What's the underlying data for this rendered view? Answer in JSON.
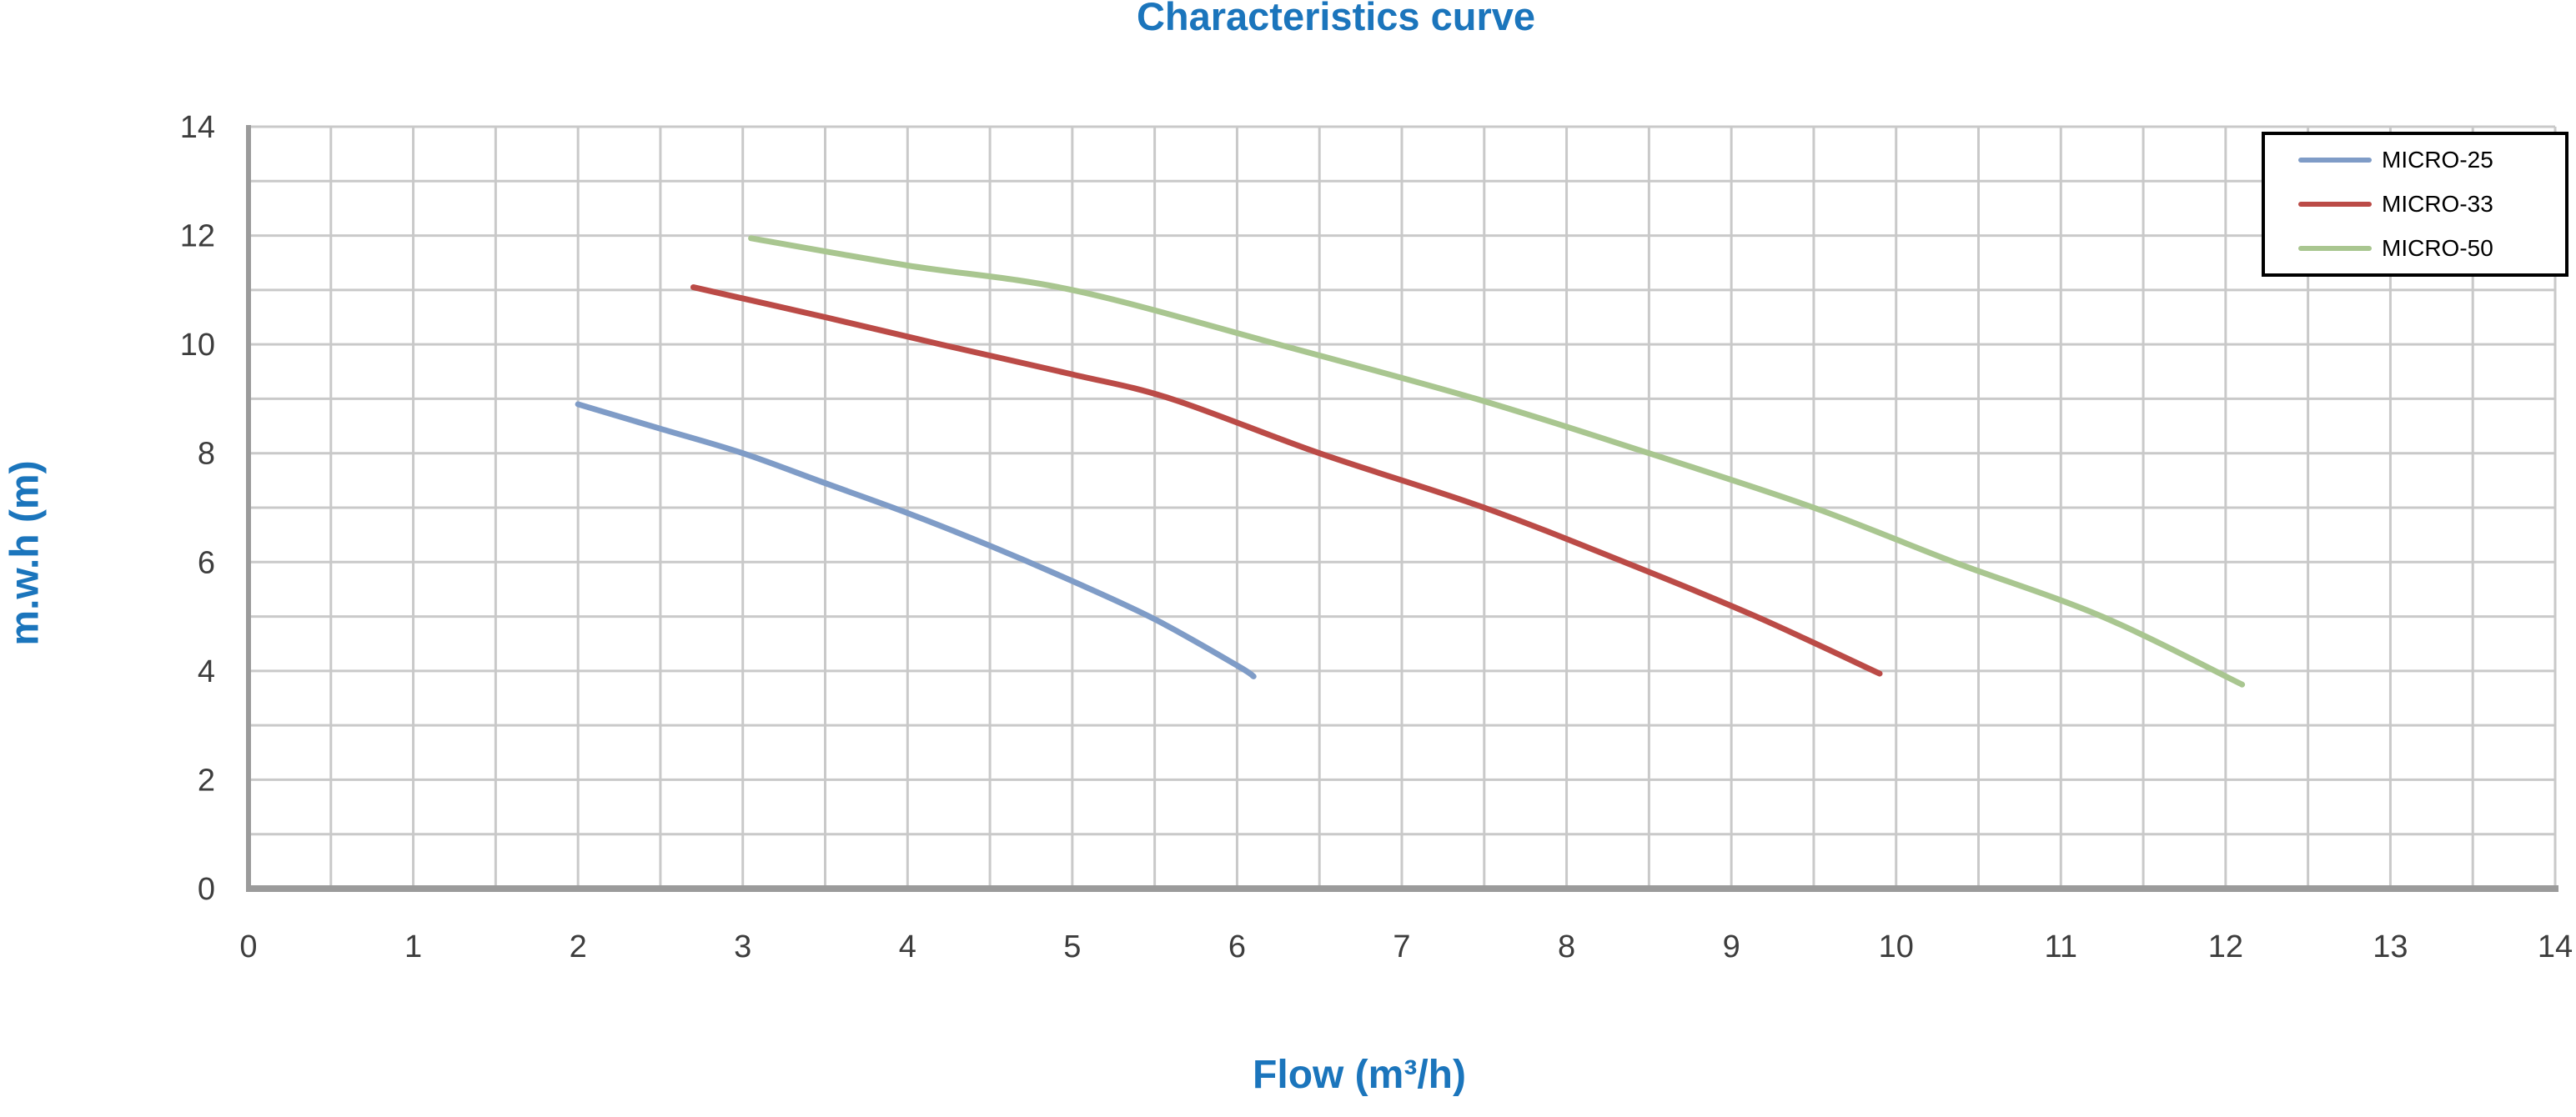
{
  "title": "Characteristics curve",
  "chart_data": {
    "type": "line",
    "title": "Characteristics curve",
    "xlabel": "Flow (m³/h)",
    "ylabel": "m.w.h (m)",
    "xlim": [
      0,
      14
    ],
    "ylim": [
      0,
      14
    ],
    "x_tick_step": 1,
    "y_tick_step": 2,
    "x_grid_step": 0.5,
    "y_grid_step": 1,
    "grid": true,
    "legend_position": "top-right",
    "series": [
      {
        "name": "MICRO-25",
        "color": "#7F9CC7",
        "points": [
          [
            2.0,
            8.9
          ],
          [
            2.5,
            8.45
          ],
          [
            3.0,
            8.0
          ],
          [
            3.5,
            7.45
          ],
          [
            4.0,
            6.9
          ],
          [
            4.5,
            6.3
          ],
          [
            5.0,
            5.65
          ],
          [
            5.5,
            4.95
          ],
          [
            6.0,
            4.1
          ],
          [
            6.1,
            3.9
          ]
        ]
      },
      {
        "name": "MICRO-33",
        "color": "#BB4B47",
        "points": [
          [
            2.7,
            11.05
          ],
          [
            3.5,
            10.5
          ],
          [
            4.2,
            10.0
          ],
          [
            5.0,
            9.45
          ],
          [
            5.6,
            9.0
          ],
          [
            6.5,
            8.0
          ],
          [
            7.5,
            7.0
          ],
          [
            8.35,
            6.0
          ],
          [
            9.15,
            5.0
          ],
          [
            9.9,
            3.95
          ]
        ]
      },
      {
        "name": "MICRO-50",
        "color": "#A9C690",
        "points": [
          [
            3.05,
            11.95
          ],
          [
            4.0,
            11.45
          ],
          [
            5.0,
            11.0
          ],
          [
            6.25,
            10.0
          ],
          [
            7.45,
            9.0
          ],
          [
            8.5,
            8.0
          ],
          [
            9.5,
            7.0
          ],
          [
            10.35,
            6.0
          ],
          [
            11.25,
            5.0
          ],
          [
            12.1,
            3.75
          ]
        ]
      }
    ]
  },
  "colors": {
    "title_text": "#1B75BC",
    "axis_title_text": "#1B75BC",
    "tick_text": "#3D3D3D",
    "grid_line": "#C9C9C9",
    "axis_line": "#9B9B9B",
    "legend_border": "#000000",
    "background": "#FFFFFF"
  }
}
